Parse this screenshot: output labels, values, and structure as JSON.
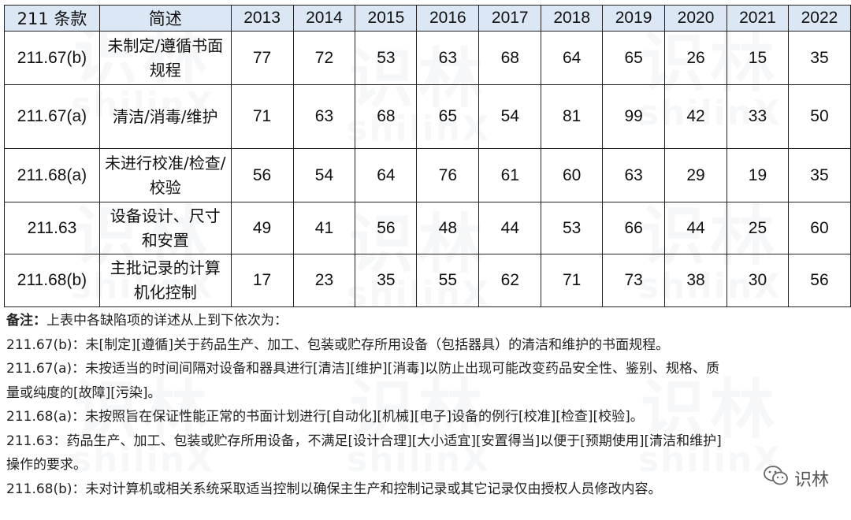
{
  "table": {
    "headers": [
      "211 条款",
      "简述",
      "2013",
      "2014",
      "2015",
      "2016",
      "2017",
      "2018",
      "2019",
      "2020",
      "2021",
      "2022"
    ],
    "rows": [
      {
        "clause": "211.67(b)",
        "desc": "未制定/遵循书面规程",
        "values": [
          "77",
          "72",
          "53",
          "63",
          "68",
          "64",
          "65",
          "26",
          "15",
          "35"
        ]
      },
      {
        "clause": "211.67(a)",
        "desc": "清洁/消毒/维护",
        "values": [
          "71",
          "63",
          "68",
          "65",
          "54",
          "81",
          "99",
          "42",
          "33",
          "50"
        ]
      },
      {
        "clause": "211.68(a)",
        "desc": "未进行校准/检查/校验",
        "values": [
          "56",
          "54",
          "64",
          "76",
          "61",
          "60",
          "63",
          "29",
          "19",
          "35"
        ]
      },
      {
        "clause": "211.63",
        "desc": "设备设计、尺寸和安置",
        "values": [
          "49",
          "41",
          "56",
          "48",
          "44",
          "53",
          "66",
          "44",
          "25",
          "60"
        ]
      },
      {
        "clause": "211.68(b)",
        "desc": "主批记录的计算机化控制",
        "values": [
          "17",
          "23",
          "35",
          "55",
          "62",
          "71",
          "73",
          "38",
          "30",
          "56"
        ]
      }
    ]
  },
  "notes": {
    "title": "备注：",
    "intro": "上表中各缺陷项的详述从上到下依次为：",
    "lines": [
      "211.67(b)：未[制定][遵循]关于药品生产、加工、包装或贮存所用设备（包括器具）的清洁和维护的书面规程。",
      "211.67(a)：未按适当的时间间隔对设备和器具进行[清洁][维护][消毒]以防止出现可能改变药品安全性、鉴别、规格、质",
      "量或纯度的[故障][污染]。",
      "211.68(a)：未按照旨在保证性能正常的书面计划进行[自动化][机械][电子]设备的例行[校准][检查][校验]。",
      "211.63：药品生产、加工、包装或贮存所用设备，不满足[设计合理][大小适宜][安置得当]以便于[预期使用][清洁和维护]",
      "操作的要求。",
      "211.68(b)：未对计算机或相关系统采取适当控制以确保主生产和控制记录或其它记录仅由授权人员修改内容。"
    ]
  },
  "brand": {
    "name": "识林",
    "icon": "wechat-icon"
  },
  "watermark": {
    "zh": "识林",
    "en": "shilinX"
  }
}
